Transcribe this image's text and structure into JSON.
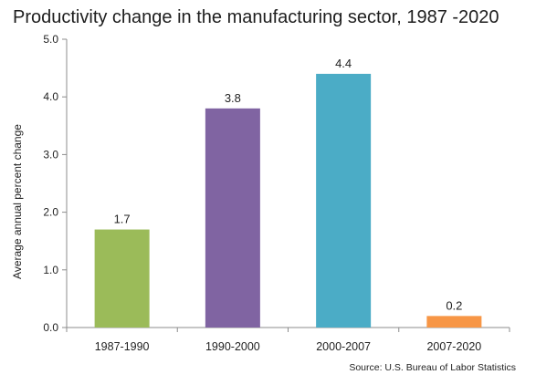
{
  "chart_data": {
    "type": "bar",
    "title": "Productivity change in the manufacturing sector, 1987 -2020",
    "xlabel": "",
    "ylabel": "Average annual percent change",
    "categories": [
      "1987-1990",
      "1990-2000",
      "2000-2007",
      "2007-2020"
    ],
    "values": [
      1.7,
      3.8,
      4.4,
      0.2
    ],
    "data_labels": [
      "1.7",
      "3.8",
      "4.4",
      "0.2"
    ],
    "colors": [
      "#9bbb59",
      "#8064a2",
      "#4bacc6",
      "#f79646"
    ],
    "ylim": [
      0,
      5
    ],
    "yticks": [
      0,
      1,
      2,
      3,
      4,
      5
    ],
    "ytick_labels": [
      "0.0",
      "1.0",
      "2.0",
      "3.0",
      "4.0",
      "5.0"
    ],
    "grid": false,
    "legend": "none",
    "source": "Source: U.S. Bureau of Labor Statistics"
  }
}
